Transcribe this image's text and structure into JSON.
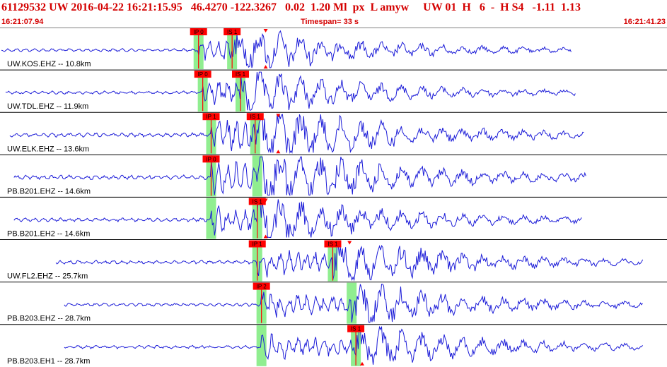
{
  "header": {
    "title": "61129532 UW 2016-04-22 16:21:15.95   46.4270 -122.3267   0.02  1.20 Ml  px  L amyw     UW 01  H   6  -  H S4   -1.11  1.13",
    "start_time": "16:21:07.94",
    "timespan": "Timespan=  33 s",
    "end_time": "16:21:41.23"
  },
  "colors": {
    "trace": "#1c1cd8",
    "pick": "#ff0000",
    "pick_window": "#90ee90",
    "title": "#d40000",
    "separator": "#000000"
  },
  "traces": [
    {
      "label": "UW.KOS.EHZ -- 10.8km",
      "start_s": 0.0,
      "end_s": 27.2,
      "p_s": 9.4,
      "s_s": 11.0,
      "amp": 1.0,
      "picks": [
        {
          "text": "IP 0",
          "t_s": 9.4
        },
        {
          "text": "IS 1",
          "t_s": 11.0
        }
      ],
      "tri_down_s": 12.6,
      "tri_up_s": 12.6
    },
    {
      "label": "UW.TDL.EHZ -- 11.9km",
      "start_s": 0.2,
      "end_s": 27.4,
      "p_s": 9.6,
      "s_s": 11.4,
      "amp": 1.0,
      "picks": [
        {
          "text": "IP 0",
          "t_s": 9.6
        },
        {
          "text": "IS 1",
          "t_s": 11.4
        }
      ],
      "tri_down_s": null,
      "tri_up_s": null
    },
    {
      "label": "UW.ELK.EHZ -- 13.6km",
      "start_s": 0.4,
      "end_s": 27.8,
      "p_s": 10.0,
      "s_s": 12.1,
      "amp": 1.35,
      "picks": [
        {
          "text": "IP 1",
          "t_s": 10.0
        },
        {
          "text": "IS 1",
          "t_s": 12.1
        }
      ],
      "tri_down_s": 13.2,
      "tri_up_s": 13.2
    },
    {
      "label": "PB.B201.EHZ -- 14.6km",
      "start_s": 0.6,
      "end_s": 27.9,
      "p_s": 10.0,
      "s_s": 12.2,
      "amp": 1.45,
      "picks": [
        {
          "text": "IP 0",
          "t_s": 10.0
        }
      ],
      "tri_down_s": null,
      "tri_up_s": null
    },
    {
      "label": "PB.B201.EH2 -- 14.6km",
      "start_s": 0.6,
      "end_s": 27.7,
      "p_s": 10.0,
      "s_s": 12.2,
      "amp": 1.15,
      "picks": [
        {
          "text": "IS 1",
          "t_s": 12.2
        }
      ],
      "tri_down_s": 12.6,
      "tri_up_s": 12.6
    },
    {
      "label": "UW.FL2.EHZ -- 25.7km",
      "start_s": 2.6,
      "end_s": 30.6,
      "p_s": 12.2,
      "s_s": 15.8,
      "amp": 1.15,
      "picks": [
        {
          "text": "IP 1",
          "t_s": 12.2
        },
        {
          "text": "IS 1",
          "t_s": 15.8
        }
      ],
      "tri_down_s": 16.6,
      "tri_up_s": null
    },
    {
      "label": "PB.B203.EHZ -- 28.7km",
      "start_s": 3.0,
      "end_s": 30.6,
      "p_s": 12.4,
      "s_s": 16.7,
      "amp": 1.05,
      "picks": [
        {
          "text": "IP 2",
          "t_s": 12.4
        }
      ],
      "tri_down_s": null,
      "tri_up_s": null
    },
    {
      "label": "PB.B203.EH1 -- 28.7km",
      "start_s": 3.0,
      "end_s": 30.6,
      "p_s": 12.4,
      "s_s": 16.9,
      "amp": 1.05,
      "picks": [
        {
          "text": "IS 1",
          "t_s": 16.9
        }
      ],
      "tri_down_s": 17.2,
      "tri_up_s": 17.2
    }
  ]
}
